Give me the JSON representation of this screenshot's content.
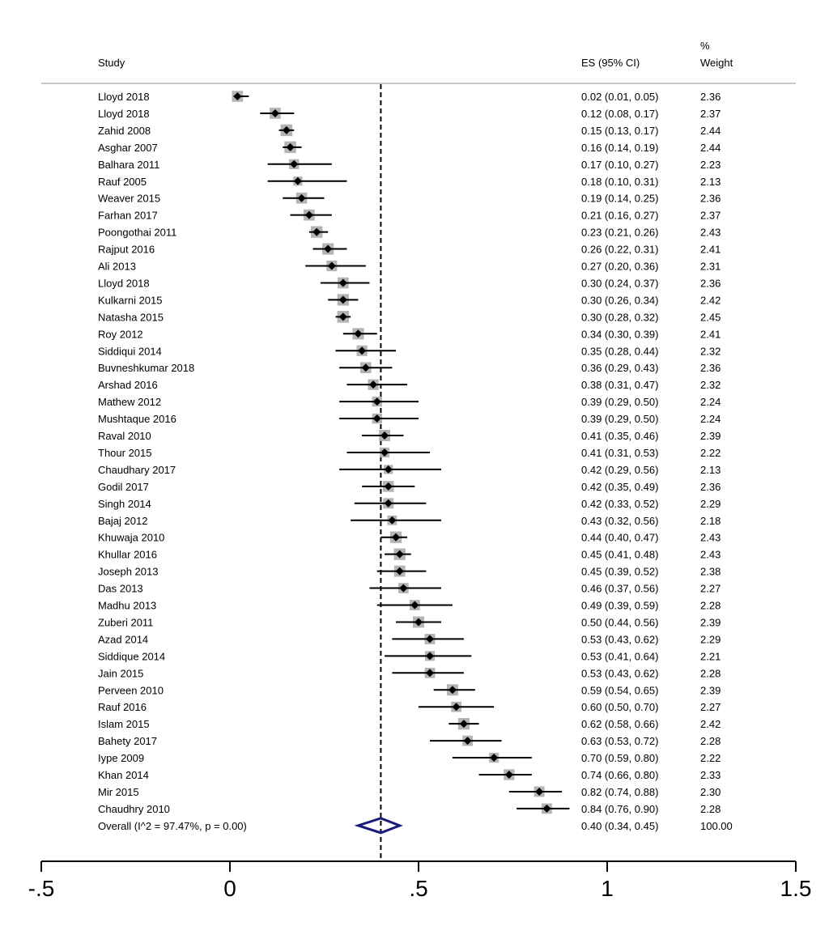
{
  "header": {
    "study_label": "Study",
    "es_label": "ES (95% CI)",
    "weight_pct": "%",
    "weight_label": "Weight"
  },
  "chart_data": {
    "type": "forest",
    "title": "",
    "xlabel": "",
    "ylabel": "",
    "xlim": [
      -0.5,
      1.5
    ],
    "x_ticks": [
      -0.5,
      0,
      0.5,
      1,
      1.5
    ],
    "x_tick_labels": [
      "-.5",
      "0",
      ".5",
      "1",
      "1.5"
    ],
    "reference_line": 0.4,
    "grid": false,
    "studies": [
      {
        "name": "Lloyd 2018",
        "es": 0.02,
        "lo": 0.01,
        "hi": 0.05,
        "ci_text": "0.02 (0.01, 0.05)",
        "weight": "2.36"
      },
      {
        "name": "Lloyd 2018",
        "es": 0.12,
        "lo": 0.08,
        "hi": 0.17,
        "ci_text": "0.12 (0.08, 0.17)",
        "weight": "2.37"
      },
      {
        "name": "Zahid 2008",
        "es": 0.15,
        "lo": 0.13,
        "hi": 0.17,
        "ci_text": "0.15 (0.13, 0.17)",
        "weight": "2.44"
      },
      {
        "name": "Asghar 2007",
        "es": 0.16,
        "lo": 0.14,
        "hi": 0.19,
        "ci_text": "0.16 (0.14, 0.19)",
        "weight": "2.44"
      },
      {
        "name": "Balhara 2011",
        "es": 0.17,
        "lo": 0.1,
        "hi": 0.27,
        "ci_text": "0.17 (0.10, 0.27)",
        "weight": "2.23"
      },
      {
        "name": "Rauf 2005",
        "es": 0.18,
        "lo": 0.1,
        "hi": 0.31,
        "ci_text": "0.18 (0.10, 0.31)",
        "weight": "2.13"
      },
      {
        "name": "Weaver 2015",
        "es": 0.19,
        "lo": 0.14,
        "hi": 0.25,
        "ci_text": "0.19 (0.14, 0.25)",
        "weight": "2.36"
      },
      {
        "name": "Farhan 2017",
        "es": 0.21,
        "lo": 0.16,
        "hi": 0.27,
        "ci_text": "0.21 (0.16, 0.27)",
        "weight": "2.37"
      },
      {
        "name": "Poongothai 2011",
        "es": 0.23,
        "lo": 0.21,
        "hi": 0.26,
        "ci_text": "0.23 (0.21, 0.26)",
        "weight": "2.43"
      },
      {
        "name": "Rajput 2016",
        "es": 0.26,
        "lo": 0.22,
        "hi": 0.31,
        "ci_text": "0.26 (0.22, 0.31)",
        "weight": "2.41"
      },
      {
        "name": "Ali 2013",
        "es": 0.27,
        "lo": 0.2,
        "hi": 0.36,
        "ci_text": "0.27 (0.20, 0.36)",
        "weight": "2.31"
      },
      {
        "name": "Lloyd 2018",
        "es": 0.3,
        "lo": 0.24,
        "hi": 0.37,
        "ci_text": "0.30 (0.24, 0.37)",
        "weight": "2.36"
      },
      {
        "name": "Kulkarni 2015",
        "es": 0.3,
        "lo": 0.26,
        "hi": 0.34,
        "ci_text": "0.30 (0.26, 0.34)",
        "weight": "2.42"
      },
      {
        "name": "Natasha 2015",
        "es": 0.3,
        "lo": 0.28,
        "hi": 0.32,
        "ci_text": "0.30 (0.28, 0.32)",
        "weight": "2.45"
      },
      {
        "name": "Roy 2012",
        "es": 0.34,
        "lo": 0.3,
        "hi": 0.39,
        "ci_text": "0.34 (0.30, 0.39)",
        "weight": "2.41"
      },
      {
        "name": "Siddiqui 2014",
        "es": 0.35,
        "lo": 0.28,
        "hi": 0.44,
        "ci_text": "0.35 (0.28, 0.44)",
        "weight": "2.32"
      },
      {
        "name": "Buvneshkumar 2018",
        "es": 0.36,
        "lo": 0.29,
        "hi": 0.43,
        "ci_text": "0.36 (0.29, 0.43)",
        "weight": "2.36"
      },
      {
        "name": "Arshad 2016",
        "es": 0.38,
        "lo": 0.31,
        "hi": 0.47,
        "ci_text": "0.38 (0.31, 0.47)",
        "weight": "2.32"
      },
      {
        "name": "Mathew 2012",
        "es": 0.39,
        "lo": 0.29,
        "hi": 0.5,
        "ci_text": "0.39 (0.29, 0.50)",
        "weight": "2.24"
      },
      {
        "name": "Mushtaque 2016",
        "es": 0.39,
        "lo": 0.29,
        "hi": 0.5,
        "ci_text": "0.39 (0.29, 0.50)",
        "weight": "2.24"
      },
      {
        "name": "Raval 2010",
        "es": 0.41,
        "lo": 0.35,
        "hi": 0.46,
        "ci_text": "0.41 (0.35, 0.46)",
        "weight": "2.39"
      },
      {
        "name": "Thour 2015",
        "es": 0.41,
        "lo": 0.31,
        "hi": 0.53,
        "ci_text": "0.41 (0.31, 0.53)",
        "weight": "2.22"
      },
      {
        "name": "Chaudhary 2017",
        "es": 0.42,
        "lo": 0.29,
        "hi": 0.56,
        "ci_text": "0.42 (0.29, 0.56)",
        "weight": "2.13"
      },
      {
        "name": "Godil 2017",
        "es": 0.42,
        "lo": 0.35,
        "hi": 0.49,
        "ci_text": "0.42 (0.35, 0.49)",
        "weight": "2.36"
      },
      {
        "name": "Singh 2014",
        "es": 0.42,
        "lo": 0.33,
        "hi": 0.52,
        "ci_text": "0.42 (0.33, 0.52)",
        "weight": "2.29"
      },
      {
        "name": "Bajaj 2012",
        "es": 0.43,
        "lo": 0.32,
        "hi": 0.56,
        "ci_text": "0.43 (0.32, 0.56)",
        "weight": "2.18"
      },
      {
        "name": "Khuwaja 2010",
        "es": 0.44,
        "lo": 0.4,
        "hi": 0.47,
        "ci_text": "0.44 (0.40, 0.47)",
        "weight": "2.43"
      },
      {
        "name": "Khullar 2016",
        "es": 0.45,
        "lo": 0.41,
        "hi": 0.48,
        "ci_text": "0.45 (0.41, 0.48)",
        "weight": "2.43"
      },
      {
        "name": "Joseph 2013",
        "es": 0.45,
        "lo": 0.39,
        "hi": 0.52,
        "ci_text": "0.45 (0.39, 0.52)",
        "weight": "2.38"
      },
      {
        "name": "Das 2013",
        "es": 0.46,
        "lo": 0.37,
        "hi": 0.56,
        "ci_text": "0.46 (0.37, 0.56)",
        "weight": "2.27"
      },
      {
        "name": "Madhu 2013",
        "es": 0.49,
        "lo": 0.39,
        "hi": 0.59,
        "ci_text": "0.49 (0.39, 0.59)",
        "weight": "2.28"
      },
      {
        "name": "Zuberi 2011",
        "es": 0.5,
        "lo": 0.44,
        "hi": 0.56,
        "ci_text": "0.50 (0.44, 0.56)",
        "weight": "2.39"
      },
      {
        "name": "Azad 2014",
        "es": 0.53,
        "lo": 0.43,
        "hi": 0.62,
        "ci_text": "0.53 (0.43, 0.62)",
        "weight": "2.29"
      },
      {
        "name": "Siddique 2014",
        "es": 0.53,
        "lo": 0.41,
        "hi": 0.64,
        "ci_text": "0.53 (0.41, 0.64)",
        "weight": "2.21"
      },
      {
        "name": "Jain 2015",
        "es": 0.53,
        "lo": 0.43,
        "hi": 0.62,
        "ci_text": "0.53 (0.43, 0.62)",
        "weight": "2.28"
      },
      {
        "name": "Perveen 2010",
        "es": 0.59,
        "lo": 0.54,
        "hi": 0.65,
        "ci_text": "0.59 (0.54, 0.65)",
        "weight": "2.39"
      },
      {
        "name": "Rauf 2016",
        "es": 0.6,
        "lo": 0.5,
        "hi": 0.7,
        "ci_text": "0.60 (0.50, 0.70)",
        "weight": "2.27"
      },
      {
        "name": "Islam 2015",
        "es": 0.62,
        "lo": 0.58,
        "hi": 0.66,
        "ci_text": "0.62 (0.58, 0.66)",
        "weight": "2.42"
      },
      {
        "name": "Bahety 2017",
        "es": 0.63,
        "lo": 0.53,
        "hi": 0.72,
        "ci_text": "0.63 (0.53, 0.72)",
        "weight": "2.28"
      },
      {
        "name": "Iype 2009",
        "es": 0.7,
        "lo": 0.59,
        "hi": 0.8,
        "ci_text": "0.70 (0.59, 0.80)",
        "weight": "2.22"
      },
      {
        "name": "Khan 2014",
        "es": 0.74,
        "lo": 0.66,
        "hi": 0.8,
        "ci_text": "0.74 (0.66, 0.80)",
        "weight": "2.33"
      },
      {
        "name": "Mir 2015",
        "es": 0.82,
        "lo": 0.74,
        "hi": 0.88,
        "ci_text": "0.82 (0.74, 0.88)",
        "weight": "2.30"
      },
      {
        "name": "Chaudhry 2010",
        "es": 0.84,
        "lo": 0.76,
        "hi": 0.9,
        "ci_text": "0.84 (0.76, 0.90)",
        "weight": "2.28"
      }
    ],
    "overall": {
      "name": "Overall  (I^2 = 97.47%, p = 0.00)",
      "es": 0.4,
      "lo": 0.34,
      "hi": 0.45,
      "ci_text": "0.40 (0.34, 0.45)",
      "weight": "100.00"
    },
    "colors": {
      "marker": "#000000",
      "weight_box": "#b4b4b4",
      "diamond": "#1a1a7a",
      "header_rule": "#c8c8c8"
    }
  }
}
